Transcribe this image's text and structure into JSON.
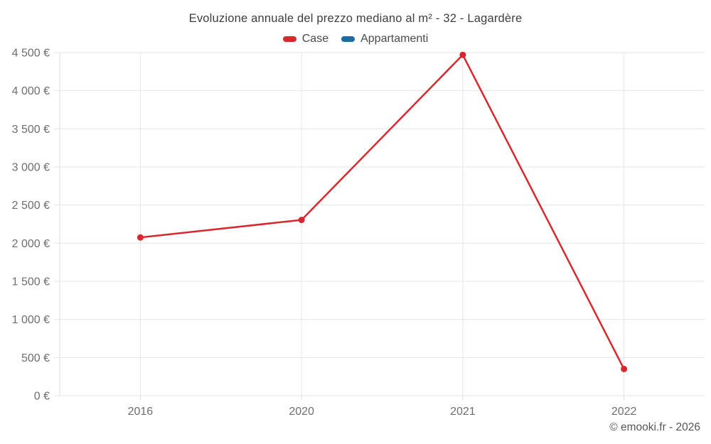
{
  "chart_data": {
    "type": "line",
    "title": "Evoluzione annuale del prezzo mediano al m² - 32 - Lagardère",
    "categories": [
      "2016",
      "2020",
      "2021",
      "2022"
    ],
    "series": [
      {
        "name": "Case",
        "color": "#d7282e",
        "values": [
          2075,
          2305,
          4470,
          350
        ]
      },
      {
        "name": "Appartamenti",
        "color": "#1a6d9e",
        "values": []
      }
    ],
    "xlabel": "",
    "ylabel": "",
    "ylim": [
      0,
      4500
    ],
    "y_tick_step": 500,
    "y_ticks": [
      {
        "value": 0,
        "label": "0 €"
      },
      {
        "value": 500,
        "label": "500 €"
      },
      {
        "value": 1000,
        "label": "1 000 €"
      },
      {
        "value": 1500,
        "label": "1 500 €"
      },
      {
        "value": 2000,
        "label": "2 000 €"
      },
      {
        "value": 2500,
        "label": "2 500 €"
      },
      {
        "value": 3000,
        "label": "3 000 €"
      },
      {
        "value": 3500,
        "label": "3 500 €"
      },
      {
        "value": 4000,
        "label": "4 000 €"
      },
      {
        "value": 4500,
        "label": "4 500 €"
      }
    ],
    "grid": true,
    "legend_position": "top"
  },
  "footer": {
    "attribution": "© emooki.fr - 2026"
  },
  "colors": {
    "background": "#ffffff",
    "grid": "#e6e6e6",
    "axis_line": "#dcdcdc",
    "axis_text": "#6e6e6e",
    "title_text": "#3e3e3e",
    "legend_text": "#4a4a4a",
    "attribution_text": "#565656"
  }
}
